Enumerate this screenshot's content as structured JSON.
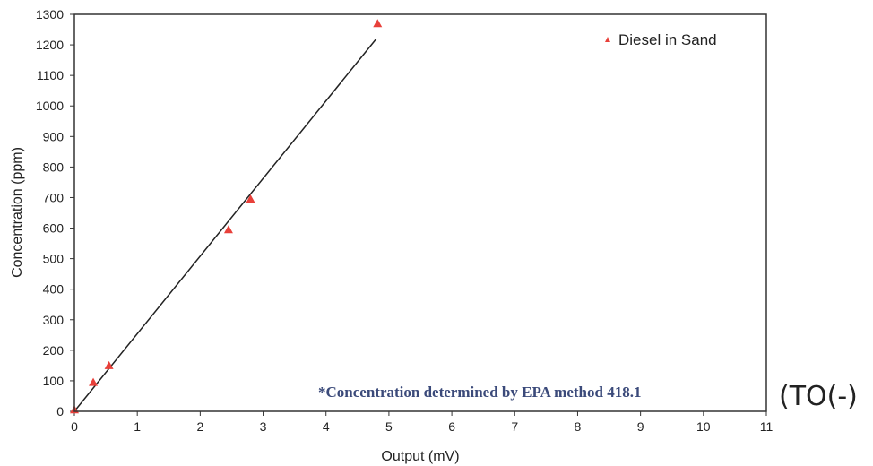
{
  "chart_data": {
    "type": "scatter",
    "xlabel": "Output (mV)",
    "ylabel": "Concentration (ppm)",
    "xlim": [
      0,
      11
    ],
    "ylim": [
      0,
      1300
    ],
    "x_ticks": [
      0,
      1,
      2,
      3,
      4,
      5,
      6,
      7,
      8,
      9,
      10,
      11
    ],
    "y_ticks": [
      0,
      100,
      200,
      300,
      400,
      500,
      600,
      700,
      800,
      900,
      1000,
      1100,
      1200,
      1300
    ],
    "grid": false,
    "legend_position": "top-right",
    "series": [
      {
        "name": "Diesel in Sand",
        "marker": "triangle",
        "color": "#e8403a",
        "points": [
          {
            "x": 0.0,
            "y": 5
          },
          {
            "x": 0.3,
            "y": 95
          },
          {
            "x": 0.55,
            "y": 150
          },
          {
            "x": 2.45,
            "y": 595
          },
          {
            "x": 2.8,
            "y": 695
          },
          {
            "x": 4.82,
            "y": 1270
          }
        ]
      }
    ],
    "trendline": {
      "x0": 0.0,
      "y0": 0,
      "x1": 4.8,
      "y1": 1220,
      "color": "#222222"
    },
    "annotation": "*Concentration determined by EPA method 418.1",
    "handwritten_note": "(TO(-)"
  }
}
